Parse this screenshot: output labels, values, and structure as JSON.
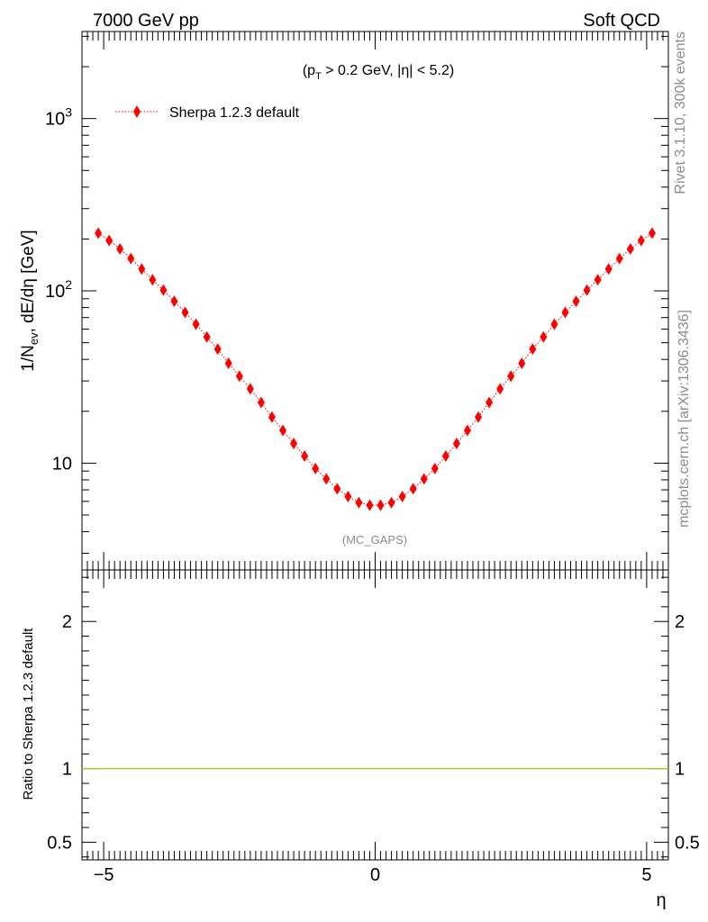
{
  "header": {
    "left": "7000 GeV pp",
    "right": "Soft QCD"
  },
  "side": {
    "rivet": "Rivet 3.1.10,  300k events",
    "mcplots": "mcplots.cern.ch [arXiv:1306.3436]"
  },
  "chart_data": [
    {
      "type": "scatter",
      "panel": "main",
      "annotation": "(p_T > 0.2 GeV, |η| < 5.2)",
      "analysis_label": "(MC_GAPS)",
      "ylabel": "1/N_ev, dE/dη [GeV]",
      "yscale": "log",
      "ylim": [
        2.4,
        3200
      ],
      "xlim": [
        -5.4,
        5.4
      ],
      "yticks": [
        {
          "value": 10,
          "label": "10"
        },
        {
          "value": 100,
          "label": "10^2"
        },
        {
          "value": 1000,
          "label": "10^3"
        }
      ],
      "legend": {
        "position": "top-left",
        "entry": "Sherpa 1.2.3 default"
      },
      "color": "#ff0000",
      "series": [
        {
          "name": "Sherpa 1.2.3 default",
          "x": [
            -5.1,
            -4.9,
            -4.7,
            -4.5,
            -4.3,
            -4.1,
            -3.9,
            -3.7,
            -3.5,
            -3.3,
            -3.1,
            -2.9,
            -2.7,
            -2.5,
            -2.3,
            -2.1,
            -1.9,
            -1.7,
            -1.5,
            -1.3,
            -1.1,
            -0.9,
            -0.7,
            -0.5,
            -0.3,
            -0.1,
            0.1,
            0.3,
            0.5,
            0.7,
            0.9,
            1.1,
            1.3,
            1.5,
            1.7,
            1.9,
            2.1,
            2.3,
            2.5,
            2.7,
            2.9,
            3.1,
            3.3,
            3.5,
            3.7,
            3.9,
            4.1,
            4.3,
            4.5,
            4.7,
            4.9,
            5.1
          ],
          "y": [
            216,
            196,
            175,
            154,
            134,
            116,
            101,
            87,
            75,
            64,
            54,
            46,
            38,
            32,
            27,
            22.5,
            18.5,
            15.5,
            13,
            11,
            9.3,
            8.1,
            7.1,
            6.4,
            5.9,
            5.7,
            5.7,
            5.9,
            6.4,
            7.1,
            8.1,
            9.3,
            11,
            13,
            15.5,
            18.5,
            22.5,
            27,
            32,
            38,
            46,
            54,
            64,
            75,
            87,
            101,
            116,
            134,
            154,
            175,
            196,
            216
          ]
        }
      ]
    },
    {
      "type": "line",
      "panel": "ratio",
      "ylabel": "Ratio to Sherpa 1.2.3 default",
      "xlabel": "η",
      "ylim": [
        0.38,
        2.35
      ],
      "xlim": [
        -5.4,
        5.4
      ],
      "xticks": [
        {
          "value": -5,
          "label": "−5"
        },
        {
          "value": 0,
          "label": "0"
        },
        {
          "value": 5,
          "label": "5"
        }
      ],
      "yticks": [
        {
          "value": 0.5,
          "label": "0.5"
        },
        {
          "value": 1,
          "label": "1"
        },
        {
          "value": 2,
          "label": "2"
        }
      ],
      "series": [
        {
          "name": "Sherpa 1.2.3 default",
          "x": [
            -5.4,
            5.4
          ],
          "y": [
            1,
            1
          ],
          "color": "#9acd32"
        }
      ]
    }
  ]
}
